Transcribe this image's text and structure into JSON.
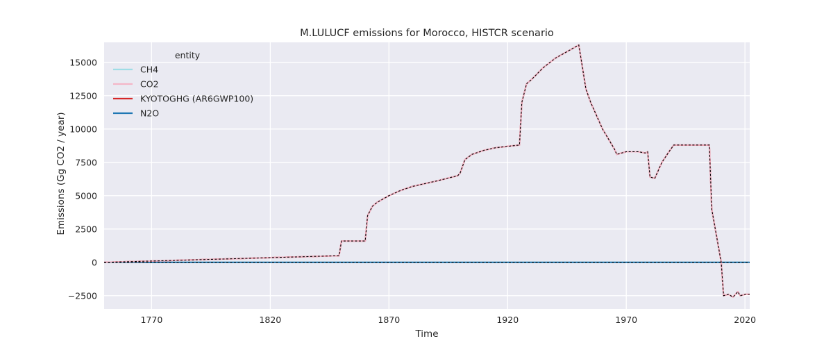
{
  "chart_data": {
    "type": "line",
    "title": "M.LULUCF emissions for Morocco, HISTCR scenario",
    "xlabel": "Time",
    "ylabel": "Emissions (Gg CO2 / year)",
    "xlim": [
      1750,
      2022
    ],
    "ylim": [
      -3500,
      16500
    ],
    "xticks": [
      1770,
      1820,
      1870,
      1920,
      1970,
      2020
    ],
    "yticks": [
      -2500,
      0,
      2500,
      5000,
      7500,
      10000,
      12500,
      15000
    ],
    "grid": true,
    "legend": {
      "title": "entity",
      "placement": "top-left",
      "entries": [
        "CH4",
        "CO2",
        "KYOTOGHG (AR6GWP100)",
        "N2O"
      ]
    },
    "series": [
      {
        "name": "CH4",
        "color": "#9fdde6",
        "x": [
          1750,
          2022
        ],
        "y": [
          0,
          0
        ]
      },
      {
        "name": "CO2",
        "color": "#f4b6c8",
        "x": [
          1750,
          1770,
          1800,
          1849,
          1850,
          1860,
          1861,
          1863,
          1865,
          1870,
          1875,
          1880,
          1890,
          1899,
          1900,
          1902,
          1905,
          1910,
          1915,
          1920,
          1925,
          1926,
          1928,
          1930,
          1935,
          1940,
          1945,
          1949,
          1950,
          1953,
          1955,
          1960,
          1965,
          1966,
          1968,
          1970,
          1975,
          1978,
          1979,
          1980,
          1982,
          1985,
          1988,
          1990,
          1995,
          2000,
          2005,
          2006,
          2010,
          2011,
          2013,
          2015,
          2017,
          2018,
          2020,
          2022
        ],
        "y": [
          0,
          100,
          250,
          500,
          1600,
          1600,
          3500,
          4200,
          4500,
          5000,
          5400,
          5700,
          6100,
          6500,
          6700,
          7700,
          8100,
          8400,
          8600,
          8700,
          8800,
          12000,
          13400,
          13700,
          14600,
          15300,
          15800,
          16200,
          16300,
          13000,
          12000,
          10000,
          8500,
          8100,
          8200,
          8300,
          8300,
          8200,
          8300,
          6400,
          6300,
          7500,
          8300,
          8800,
          8800,
          8800,
          8800,
          4000,
          0,
          -2500,
          -2400,
          -2600,
          -2200,
          -2500,
          -2400,
          -2400
        ]
      },
      {
        "name": "KYOTOGHG (AR6GWP100)",
        "color": "#d62728",
        "x": [
          1750,
          1770,
          1800,
          1849,
          1850,
          1860,
          1861,
          1863,
          1865,
          1870,
          1875,
          1880,
          1890,
          1899,
          1900,
          1902,
          1905,
          1910,
          1915,
          1920,
          1925,
          1926,
          1928,
          1930,
          1935,
          1940,
          1945,
          1949,
          1950,
          1953,
          1955,
          1960,
          1965,
          1966,
          1968,
          1970,
          1975,
          1978,
          1979,
          1980,
          1982,
          1985,
          1988,
          1990,
          1995,
          2000,
          2005,
          2006,
          2010,
          2011,
          2013,
          2015,
          2017,
          2018,
          2020,
          2022
        ],
        "y": [
          0,
          100,
          250,
          500,
          1600,
          1600,
          3500,
          4200,
          4500,
          5000,
          5400,
          5700,
          6100,
          6500,
          6700,
          7700,
          8100,
          8400,
          8600,
          8700,
          8800,
          12000,
          13400,
          13700,
          14600,
          15300,
          15800,
          16200,
          16300,
          13000,
          12000,
          10000,
          8500,
          8100,
          8200,
          8300,
          8300,
          8200,
          8300,
          6400,
          6300,
          7500,
          8300,
          8800,
          8800,
          8800,
          8800,
          4000,
          0,
          -2500,
          -2400,
          -2600,
          -2200,
          -2500,
          -2400,
          -2400
        ]
      },
      {
        "name": "N2O",
        "color": "#1f77b4",
        "x": [
          1750,
          2022
        ],
        "y": [
          0,
          0
        ]
      }
    ]
  }
}
